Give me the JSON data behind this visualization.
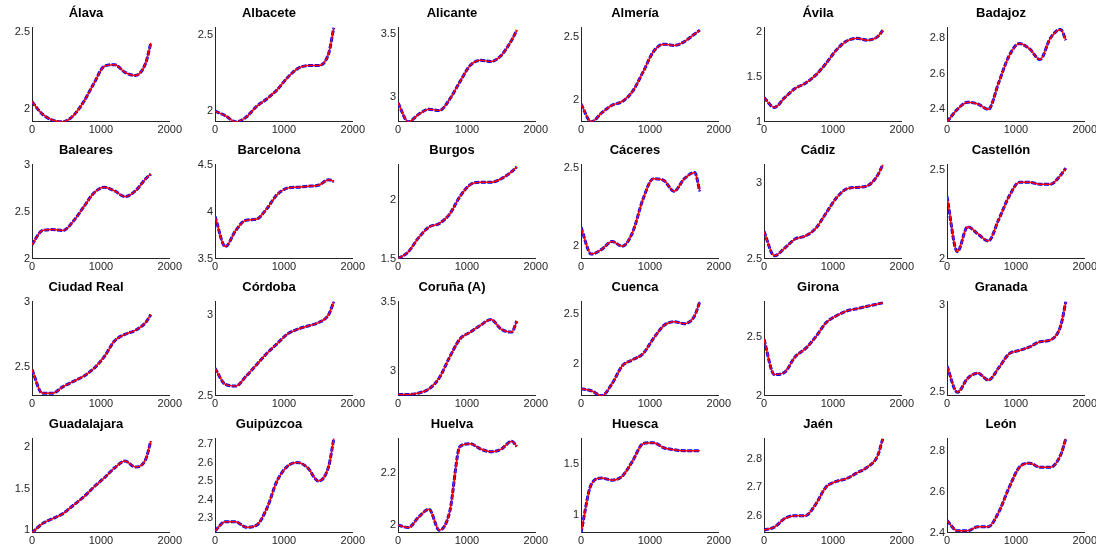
{
  "chart_data": [
    {
      "type": "line",
      "title": "Álava",
      "x": [
        0,
        150,
        300,
        450,
        600,
        750,
        900,
        1050,
        1200,
        1350,
        1500,
        1650,
        1725
      ],
      "xlim": [
        0,
        2000
      ],
      "xticks": [
        0,
        1000,
        2000
      ],
      "ylim": [
        1.92,
        2.53
      ],
      "yticks": [
        2,
        2.5
      ],
      "series": [
        {
          "color": "#0000ff",
          "line_style": "dashed",
          "values": [
            2.05,
            1.97,
            1.93,
            1.92,
            1.96,
            2.05,
            2.17,
            2.28,
            2.29,
            2.24,
            2.22,
            2.3,
            2.43
          ]
        },
        {
          "color": "#ff0000",
          "line_style": "solid",
          "values": [
            2.05,
            1.97,
            1.93,
            1.92,
            1.96,
            2.05,
            2.17,
            2.28,
            2.29,
            2.24,
            2.22,
            2.3,
            2.43
          ]
        }
      ]
    },
    {
      "type": "line",
      "title": "Albacete",
      "x": [
        0,
        150,
        300,
        450,
        600,
        750,
        900,
        1050,
        1200,
        1350,
        1500,
        1650,
        1725
      ],
      "xlim": [
        0,
        2000
      ],
      "xticks": [
        0,
        1000,
        2000
      ],
      "ylim": [
        1.93,
        2.55
      ],
      "yticks": [
        2,
        2.5
      ],
      "series": [
        {
          "color": "#0000ff",
          "line_style": "dashed",
          "values": [
            2.0,
            1.97,
            1.93,
            1.96,
            2.03,
            2.08,
            2.14,
            2.22,
            2.28,
            2.3,
            2.3,
            2.38,
            2.55
          ]
        },
        {
          "color": "#ff0000",
          "line_style": "solid",
          "values": [
            2.0,
            1.97,
            1.93,
            1.96,
            2.03,
            2.08,
            2.14,
            2.22,
            2.28,
            2.3,
            2.3,
            2.38,
            2.55
          ]
        }
      ]
    },
    {
      "type": "line",
      "title": "Alicante",
      "x": [
        0,
        150,
        300,
        450,
        600,
        750,
        900,
        1050,
        1200,
        1350,
        1500,
        1650,
        1725
      ],
      "xlim": [
        0,
        2000
      ],
      "xticks": [
        0,
        1000,
        2000
      ],
      "ylim": [
        2.8,
        3.55
      ],
      "yticks": [
        3,
        3.5
      ],
      "series": [
        {
          "color": "#0000ff",
          "line_style": "dashed",
          "values": [
            2.95,
            2.8,
            2.86,
            2.9,
            2.89,
            2.98,
            3.12,
            3.25,
            3.29,
            3.28,
            3.33,
            3.45,
            3.53
          ]
        },
        {
          "color": "#ff0000",
          "line_style": "solid",
          "values": [
            2.95,
            2.8,
            2.86,
            2.9,
            2.89,
            2.98,
            3.12,
            3.25,
            3.29,
            3.28,
            3.33,
            3.45,
            3.53
          ]
        }
      ]
    },
    {
      "type": "line",
      "title": "Almería",
      "x": [
        0,
        150,
        300,
        450,
        600,
        750,
        900,
        1050,
        1200,
        1350,
        1500,
        1650,
        1725
      ],
      "xlim": [
        0,
        2000
      ],
      "xticks": [
        0,
        1000,
        2000
      ],
      "ylim": [
        1.83,
        2.57
      ],
      "yticks": [
        2,
        2.5
      ],
      "series": [
        {
          "color": "#0000ff",
          "line_style": "dashed",
          "values": [
            1.97,
            1.83,
            1.9,
            1.96,
            1.99,
            2.07,
            2.22,
            2.38,
            2.44,
            2.43,
            2.46,
            2.52,
            2.55
          ]
        },
        {
          "color": "#ff0000",
          "line_style": "solid",
          "values": [
            1.97,
            1.83,
            1.9,
            1.96,
            1.99,
            2.07,
            2.22,
            2.38,
            2.44,
            2.43,
            2.46,
            2.52,
            2.55
          ]
        }
      ]
    },
    {
      "type": "line",
      "title": "Ávila",
      "x": [
        0,
        150,
        300,
        450,
        600,
        750,
        900,
        1050,
        1200,
        1350,
        1500,
        1650,
        1725
      ],
      "xlim": [
        0,
        2000
      ],
      "xticks": [
        0,
        1000,
        2000
      ],
      "ylim": [
        1,
        2.05
      ],
      "yticks": [
        1,
        1.5,
        2
      ],
      "series": [
        {
          "color": "#0000ff",
          "line_style": "dashed",
          "values": [
            1.27,
            1.16,
            1.27,
            1.37,
            1.43,
            1.52,
            1.65,
            1.8,
            1.9,
            1.93,
            1.91,
            1.95,
            2.02
          ]
        },
        {
          "color": "#ff0000",
          "line_style": "solid",
          "values": [
            1.27,
            1.16,
            1.27,
            1.37,
            1.43,
            1.52,
            1.65,
            1.8,
            1.9,
            1.93,
            1.91,
            1.95,
            2.02
          ]
        }
      ]
    },
    {
      "type": "line",
      "title": "Badajoz",
      "x": [
        0,
        150,
        300,
        450,
        600,
        750,
        900,
        1050,
        1200,
        1350,
        1500,
        1650,
        1725
      ],
      "xlim": [
        0,
        2000
      ],
      "xticks": [
        0,
        1000,
        2000
      ],
      "ylim": [
        2.33,
        2.86
      ],
      "yticks": [
        2.4,
        2.6,
        2.8
      ],
      "series": [
        {
          "color": "#0000ff",
          "line_style": "dashed",
          "values": [
            2.33,
            2.4,
            2.44,
            2.43,
            2.4,
            2.55,
            2.7,
            2.77,
            2.74,
            2.68,
            2.8,
            2.85,
            2.79
          ]
        },
        {
          "color": "#ff0000",
          "line_style": "solid",
          "values": [
            2.33,
            2.4,
            2.44,
            2.43,
            2.4,
            2.55,
            2.7,
            2.77,
            2.74,
            2.68,
            2.8,
            2.85,
            2.79
          ]
        }
      ]
    },
    {
      "type": "line",
      "title": "Baleares",
      "x": [
        0,
        150,
        300,
        450,
        600,
        750,
        900,
        1050,
        1200,
        1350,
        1500,
        1650,
        1725
      ],
      "xlim": [
        0,
        2000
      ],
      "xticks": [
        0,
        1000,
        2000
      ],
      "ylim": [
        2,
        3
      ],
      "yticks": [
        2,
        2.5,
        3
      ],
      "series": [
        {
          "color": "#0000ff",
          "line_style": "dashed",
          "values": [
            2.15,
            2.3,
            2.31,
            2.3,
            2.4,
            2.55,
            2.7,
            2.76,
            2.72,
            2.66,
            2.72,
            2.85,
            2.9
          ]
        },
        {
          "color": "#ff0000",
          "line_style": "solid",
          "values": [
            2.15,
            2.3,
            2.31,
            2.3,
            2.4,
            2.55,
            2.7,
            2.76,
            2.72,
            2.66,
            2.72,
            2.85,
            2.9
          ]
        }
      ]
    },
    {
      "type": "line",
      "title": "Barcelona",
      "x": [
        0,
        150,
        300,
        450,
        600,
        750,
        900,
        1050,
        1200,
        1350,
        1500,
        1650,
        1725
      ],
      "xlim": [
        0,
        2000
      ],
      "xticks": [
        0,
        1000,
        2000
      ],
      "ylim": [
        3.5,
        4.5
      ],
      "yticks": [
        3.5,
        4,
        4.5
      ],
      "series": [
        {
          "color": "#0000ff",
          "line_style": "dashed",
          "values": [
            3.95,
            3.63,
            3.8,
            3.91,
            3.92,
            4.03,
            4.18,
            4.25,
            4.26,
            4.27,
            4.28,
            4.34,
            4.32
          ]
        },
        {
          "color": "#ff0000",
          "line_style": "solid",
          "values": [
            3.95,
            3.63,
            3.8,
            3.91,
            3.92,
            4.03,
            4.18,
            4.25,
            4.26,
            4.27,
            4.28,
            4.34,
            4.32
          ]
        }
      ]
    },
    {
      "type": "line",
      "title": "Burgos",
      "x": [
        0,
        150,
        300,
        450,
        600,
        750,
        900,
        1050,
        1200,
        1350,
        1500,
        1650,
        1725
      ],
      "xlim": [
        0,
        2000
      ],
      "xticks": [
        0,
        1000,
        2000
      ],
      "ylim": [
        1.5,
        2.3
      ],
      "yticks": [
        1.5,
        2
      ],
      "series": [
        {
          "color": "#0000ff",
          "line_style": "dashed",
          "values": [
            1.5,
            1.56,
            1.68,
            1.77,
            1.8,
            1.88,
            2.03,
            2.13,
            2.15,
            2.15,
            2.18,
            2.24,
            2.28
          ]
        },
        {
          "color": "#ff0000",
          "line_style": "solid",
          "values": [
            1.5,
            1.56,
            1.68,
            1.77,
            1.8,
            1.88,
            2.03,
            2.13,
            2.15,
            2.15,
            2.18,
            2.24,
            2.28
          ]
        }
      ]
    },
    {
      "type": "line",
      "title": "Cáceres",
      "x": [
        0,
        150,
        300,
        450,
        600,
        750,
        900,
        1050,
        1200,
        1350,
        1500,
        1650,
        1725
      ],
      "xlim": [
        0,
        2000
      ],
      "xticks": [
        0,
        1000,
        2000
      ],
      "ylim": [
        1.92,
        2.52
      ],
      "yticks": [
        2,
        2.5
      ],
      "series": [
        {
          "color": "#0000ff",
          "line_style": "dashed",
          "values": [
            2.12,
            1.95,
            1.98,
            2.03,
            2.0,
            2.09,
            2.3,
            2.43,
            2.42,
            2.35,
            2.43,
            2.47,
            2.35
          ]
        },
        {
          "color": "#ff0000",
          "line_style": "solid",
          "values": [
            2.12,
            1.95,
            1.98,
            2.03,
            2.0,
            2.09,
            2.3,
            2.43,
            2.42,
            2.35,
            2.43,
            2.47,
            2.35
          ]
        }
      ]
    },
    {
      "type": "line",
      "title": "Cádiz",
      "x": [
        0,
        150,
        300,
        450,
        600,
        750,
        900,
        1050,
        1200,
        1350,
        1500,
        1650,
        1725
      ],
      "xlim": [
        0,
        2000
      ],
      "xticks": [
        0,
        1000,
        2000
      ],
      "ylim": [
        2.5,
        3.12
      ],
      "yticks": [
        2.5,
        3
      ],
      "series": [
        {
          "color": "#0000ff",
          "line_style": "dashed",
          "values": [
            2.68,
            2.52,
            2.57,
            2.63,
            2.65,
            2.7,
            2.8,
            2.9,
            2.96,
            2.97,
            2.98,
            3.05,
            3.12
          ]
        },
        {
          "color": "#ff0000",
          "line_style": "solid",
          "values": [
            2.68,
            2.52,
            2.57,
            2.63,
            2.65,
            2.7,
            2.8,
            2.9,
            2.96,
            2.97,
            2.98,
            3.05,
            3.12
          ]
        }
      ]
    },
    {
      "type": "line",
      "title": "Castellón",
      "x": [
        0,
        150,
        300,
        450,
        600,
        750,
        900,
        1050,
        1200,
        1350,
        1500,
        1650,
        1725
      ],
      "xlim": [
        0,
        2000
      ],
      "xticks": [
        0,
        1000,
        2000
      ],
      "ylim": [
        2,
        2.53
      ],
      "yticks": [
        2,
        2.5
      ],
      "series": [
        {
          "color": "#0000ff",
          "line_style": "dashed",
          "values": [
            2.35,
            2.04,
            2.18,
            2.14,
            2.1,
            2.22,
            2.35,
            2.43,
            2.43,
            2.42,
            2.42,
            2.47,
            2.51
          ]
        },
        {
          "color": "#ff0000",
          "line_style": "solid",
          "values": [
            2.35,
            2.04,
            2.18,
            2.14,
            2.1,
            2.22,
            2.35,
            2.43,
            2.43,
            2.42,
            2.42,
            2.47,
            2.51
          ]
        }
      ]
    },
    {
      "type": "line",
      "title": "Ciudad Real",
      "x": [
        0,
        150,
        300,
        450,
        600,
        750,
        900,
        1050,
        1200,
        1350,
        1500,
        1650,
        1725
      ],
      "xlim": [
        0,
        2000
      ],
      "xticks": [
        0,
        1000,
        2000
      ],
      "ylim": [
        2.28,
        3
      ],
      "yticks": [
        2.5,
        3
      ],
      "series": [
        {
          "color": "#0000ff",
          "line_style": "dashed",
          "values": [
            2.48,
            2.3,
            2.3,
            2.35,
            2.39,
            2.43,
            2.49,
            2.58,
            2.7,
            2.75,
            2.78,
            2.84,
            2.9
          ]
        },
        {
          "color": "#ff0000",
          "line_style": "solid",
          "values": [
            2.48,
            2.3,
            2.3,
            2.35,
            2.39,
            2.43,
            2.49,
            2.58,
            2.7,
            2.75,
            2.78,
            2.84,
            2.9
          ]
        }
      ]
    },
    {
      "type": "line",
      "title": "Córdoba",
      "x": [
        0,
        150,
        300,
        450,
        600,
        750,
        900,
        1050,
        1200,
        1350,
        1500,
        1650,
        1725
      ],
      "xlim": [
        0,
        2000
      ],
      "xticks": [
        0,
        1000,
        2000
      ],
      "ylim": [
        2.5,
        3.08
      ],
      "yticks": [
        2.5,
        3
      ],
      "series": [
        {
          "color": "#0000ff",
          "line_style": "dashed",
          "values": [
            2.67,
            2.57,
            2.56,
            2.62,
            2.69,
            2.76,
            2.82,
            2.88,
            2.91,
            2.93,
            2.95,
            3.0,
            3.08
          ]
        },
        {
          "color": "#ff0000",
          "line_style": "solid",
          "values": [
            2.67,
            2.57,
            2.56,
            2.62,
            2.69,
            2.76,
            2.82,
            2.88,
            2.91,
            2.93,
            2.95,
            3.0,
            3.08
          ]
        }
      ]
    },
    {
      "type": "line",
      "title": "Coruña (A)",
      "x": [
        0,
        150,
        300,
        450,
        600,
        750,
        900,
        1050,
        1200,
        1350,
        1500,
        1650,
        1725
      ],
      "xlim": [
        0,
        2000
      ],
      "xticks": [
        0,
        1000,
        2000
      ],
      "ylim": [
        2.82,
        3.5
      ],
      "yticks": [
        3,
        3.5
      ],
      "series": [
        {
          "color": "#0000ff",
          "line_style": "dashed",
          "values": [
            2.83,
            2.83,
            2.84,
            2.87,
            2.95,
            3.1,
            3.23,
            3.28,
            3.33,
            3.37,
            3.3,
            3.28,
            3.36
          ]
        },
        {
          "color": "#ff0000",
          "line_style": "solid",
          "values": [
            2.83,
            2.83,
            2.84,
            2.87,
            2.95,
            3.1,
            3.23,
            3.28,
            3.33,
            3.37,
            3.3,
            3.28,
            3.36
          ]
        }
      ]
    },
    {
      "type": "line",
      "title": "Cuenca",
      "x": [
        0,
        150,
        300,
        450,
        600,
        750,
        900,
        1050,
        1200,
        1350,
        1500,
        1650,
        1725
      ],
      "xlim": [
        0,
        2000
      ],
      "xticks": [
        0,
        1000,
        2000
      ],
      "ylim": [
        1.68,
        2.62
      ],
      "yticks": [
        2,
        2.5
      ],
      "series": [
        {
          "color": "#0000ff",
          "line_style": "dashed",
          "values": [
            1.75,
            1.73,
            1.68,
            1.8,
            1.98,
            2.04,
            2.1,
            2.25,
            2.38,
            2.42,
            2.4,
            2.48,
            2.62
          ]
        },
        {
          "color": "#ff0000",
          "line_style": "solid",
          "values": [
            1.75,
            1.73,
            1.68,
            1.8,
            1.98,
            2.04,
            2.1,
            2.25,
            2.38,
            2.42,
            2.4,
            2.48,
            2.62
          ]
        }
      ]
    },
    {
      "type": "line",
      "title": "Girona",
      "x": [
        0,
        150,
        300,
        450,
        600,
        750,
        900,
        1050,
        1200,
        1350,
        1500,
        1650,
        1725
      ],
      "xlim": [
        0,
        2000
      ],
      "xticks": [
        0,
        1000,
        2000
      ],
      "ylim": [
        2,
        2.8
      ],
      "yticks": [
        2,
        2.5
      ],
      "series": [
        {
          "color": "#0000ff",
          "line_style": "dashed",
          "values": [
            2.48,
            2.18,
            2.2,
            2.33,
            2.4,
            2.5,
            2.62,
            2.68,
            2.72,
            2.74,
            2.76,
            2.78,
            2.79
          ]
        },
        {
          "color": "#ff0000",
          "line_style": "solid",
          "values": [
            2.48,
            2.18,
            2.2,
            2.33,
            2.4,
            2.5,
            2.62,
            2.68,
            2.72,
            2.74,
            2.76,
            2.78,
            2.79
          ]
        }
      ]
    },
    {
      "type": "line",
      "title": "Granada",
      "x": [
        0,
        150,
        300,
        450,
        600,
        750,
        900,
        1050,
        1200,
        1350,
        1500,
        1650,
        1725
      ],
      "xlim": [
        0,
        2000
      ],
      "xticks": [
        0,
        1000,
        2000
      ],
      "ylim": [
        2.48,
        3.02
      ],
      "yticks": [
        2.5,
        3
      ],
      "series": [
        {
          "color": "#0000ff",
          "line_style": "dashed",
          "values": [
            2.65,
            2.5,
            2.58,
            2.61,
            2.57,
            2.64,
            2.72,
            2.74,
            2.76,
            2.79,
            2.8,
            2.88,
            3.02
          ]
        },
        {
          "color": "#ff0000",
          "line_style": "solid",
          "values": [
            2.65,
            2.5,
            2.58,
            2.61,
            2.57,
            2.64,
            2.72,
            2.74,
            2.76,
            2.79,
            2.8,
            2.88,
            3.02
          ]
        }
      ]
    },
    {
      "type": "line",
      "title": "Guadalajara",
      "x": [
        0,
        150,
        300,
        450,
        600,
        750,
        900,
        1050,
        1200,
        1350,
        1500,
        1650,
        1725
      ],
      "xlim": [
        0,
        2000
      ],
      "xticks": [
        0,
        1000,
        2000
      ],
      "ylim": [
        0.97,
        2.1
      ],
      "yticks": [
        1,
        1.5,
        2
      ],
      "series": [
        {
          "color": "#0000ff",
          "line_style": "dashed",
          "values": [
            0.97,
            1.08,
            1.14,
            1.2,
            1.3,
            1.4,
            1.52,
            1.63,
            1.75,
            1.83,
            1.76,
            1.85,
            2.07
          ]
        },
        {
          "color": "#ff0000",
          "line_style": "solid",
          "values": [
            0.97,
            1.08,
            1.14,
            1.2,
            1.3,
            1.4,
            1.52,
            1.63,
            1.75,
            1.83,
            1.76,
            1.85,
            2.07
          ]
        }
      ]
    },
    {
      "type": "line",
      "title": "Guipúzcoa",
      "x": [
        0,
        150,
        300,
        450,
        600,
        750,
        900,
        1050,
        1200,
        1350,
        1500,
        1650,
        1725
      ],
      "xlim": [
        0,
        2000
      ],
      "xticks": [
        0,
        1000,
        2000
      ],
      "ylim": [
        2.22,
        2.73
      ],
      "yticks": [
        2.3,
        2.4,
        2.5,
        2.6,
        2.7
      ],
      "series": [
        {
          "color": "#0000ff",
          "line_style": "dashed",
          "values": [
            2.23,
            2.28,
            2.28,
            2.25,
            2.26,
            2.35,
            2.5,
            2.58,
            2.6,
            2.57,
            2.5,
            2.58,
            2.73
          ]
        },
        {
          "color": "#ff0000",
          "line_style": "solid",
          "values": [
            2.23,
            2.28,
            2.28,
            2.25,
            2.26,
            2.35,
            2.5,
            2.58,
            2.6,
            2.57,
            2.5,
            2.58,
            2.73
          ]
        }
      ]
    },
    {
      "type": "line",
      "title": "Huelva",
      "x": [
        0,
        150,
        300,
        450,
        600,
        750,
        900,
        1050,
        1200,
        1350,
        1500,
        1650,
        1725
      ],
      "xlim": [
        0,
        2000
      ],
      "xticks": [
        0,
        1000,
        2000
      ],
      "ylim": [
        1.97,
        2.33
      ],
      "yticks": [
        2,
        2.2
      ],
      "series": [
        {
          "color": "#0000ff",
          "line_style": "dashed",
          "values": [
            2.0,
            1.99,
            2.03,
            2.06,
            1.98,
            2.05,
            2.3,
            2.31,
            2.29,
            2.28,
            2.29,
            2.32,
            2.3
          ]
        },
        {
          "color": "#ff0000",
          "line_style": "solid",
          "values": [
            2.0,
            1.99,
            2.03,
            2.06,
            1.98,
            2.05,
            2.3,
            2.31,
            2.29,
            2.28,
            2.29,
            2.32,
            2.3
          ]
        }
      ]
    },
    {
      "type": "line",
      "title": "Huesca",
      "x": [
        0,
        150,
        300,
        450,
        600,
        750,
        900,
        1050,
        1200,
        1350,
        1500,
        1650,
        1725
      ],
      "xlim": [
        0,
        2000
      ],
      "xticks": [
        0,
        1000,
        2000
      ],
      "ylim": [
        0.82,
        1.75
      ],
      "yticks": [
        1,
        1.5
      ],
      "series": [
        {
          "color": "#0000ff",
          "line_style": "dashed",
          "values": [
            0.82,
            1.3,
            1.36,
            1.34,
            1.38,
            1.53,
            1.7,
            1.71,
            1.66,
            1.64,
            1.63,
            1.63,
            1.63
          ]
        },
        {
          "color": "#ff0000",
          "line_style": "solid",
          "values": [
            0.82,
            1.3,
            1.36,
            1.34,
            1.38,
            1.53,
            1.7,
            1.71,
            1.66,
            1.64,
            1.63,
            1.63,
            1.63
          ]
        }
      ]
    },
    {
      "type": "line",
      "title": "Jaén",
      "x": [
        0,
        150,
        300,
        450,
        600,
        750,
        900,
        1050,
        1200,
        1350,
        1500,
        1650,
        1725
      ],
      "xlim": [
        0,
        2000
      ],
      "xticks": [
        0,
        1000,
        2000
      ],
      "ylim": [
        2.54,
        2.87
      ],
      "yticks": [
        2.6,
        2.7,
        2.8
      ],
      "series": [
        {
          "color": "#0000ff",
          "line_style": "dashed",
          "values": [
            2.55,
            2.56,
            2.59,
            2.6,
            2.6,
            2.64,
            2.7,
            2.72,
            2.73,
            2.75,
            2.77,
            2.81,
            2.87
          ]
        },
        {
          "color": "#ff0000",
          "line_style": "solid",
          "values": [
            2.55,
            2.56,
            2.59,
            2.6,
            2.6,
            2.64,
            2.7,
            2.72,
            2.73,
            2.75,
            2.77,
            2.81,
            2.87
          ]
        }
      ]
    },
    {
      "type": "line",
      "title": "León",
      "x": [
        0,
        150,
        300,
        450,
        600,
        750,
        900,
        1050,
        1200,
        1350,
        1500,
        1650,
        1725
      ],
      "xlim": [
        0,
        2000
      ],
      "xticks": [
        0,
        1000,
        2000
      ],
      "ylim": [
        2.4,
        2.86
      ],
      "yticks": [
        2.4,
        2.6,
        2.8
      ],
      "series": [
        {
          "color": "#0000ff",
          "line_style": "dashed",
          "values": [
            2.46,
            2.41,
            2.41,
            2.43,
            2.43,
            2.5,
            2.62,
            2.72,
            2.74,
            2.72,
            2.72,
            2.78,
            2.86
          ]
        },
        {
          "color": "#ff0000",
          "line_style": "solid",
          "values": [
            2.46,
            2.41,
            2.41,
            2.43,
            2.43,
            2.5,
            2.62,
            2.72,
            2.74,
            2.72,
            2.72,
            2.78,
            2.86
          ]
        }
      ]
    }
  ]
}
